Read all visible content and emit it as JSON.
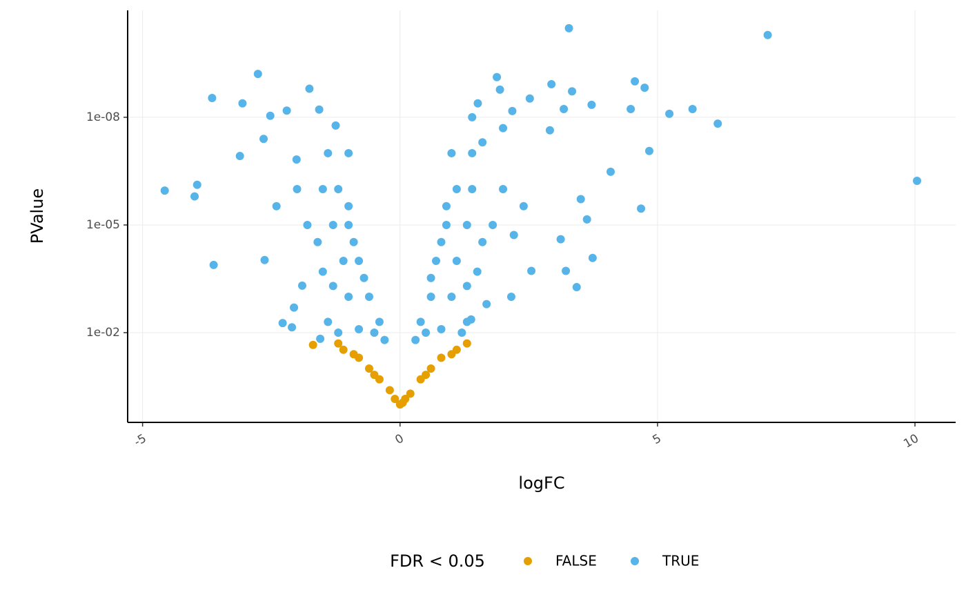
{
  "chart_data": {
    "type": "scatter",
    "x_label": "logFC",
    "y_label": "PValue",
    "legend_title": "FDR < 0.05",
    "legend_position": "bottom",
    "y_log": true,
    "grid": true,
    "xlim": [
      -5.29,
      10.79
    ],
    "ylim": [
      3.16,
      1.05e-11
    ],
    "xticks": [
      -5,
      0,
      5,
      10
    ],
    "yticks": [
      {
        "value": 0.01,
        "label": "1e-02"
      },
      {
        "value": 1e-05,
        "label": "1e-05"
      },
      {
        "value": 1e-08,
        "label": "1e-08"
      }
    ],
    "series": [
      {
        "name": "FALSE",
        "color": "#E69F00",
        "x": [
          -1.69,
          -1.2,
          -1.1,
          -0.9,
          -0.8,
          -0.6,
          -0.5,
          -0.4,
          -0.2,
          -0.1,
          0,
          0.05,
          0.1,
          0.2,
          0.4,
          0.5,
          0.6,
          0.8,
          1.0,
          1.1,
          1.3
        ],
        "values": [
          0.022,
          0.02,
          0.03,
          0.04,
          0.05,
          0.1,
          0.15,
          0.2,
          0.4,
          0.7,
          1,
          0.9,
          0.7,
          0.5,
          0.2,
          0.15,
          0.1,
          0.05,
          0.04,
          0.03,
          0.02
        ]
      },
      {
        "name": "TRUE",
        "color": "#56B4E9",
        "x": [
          3.28,
          7.14,
          -2.76,
          -3.65,
          -3.06,
          -1.76,
          -1.57,
          -4.57,
          -3.99,
          -3.94,
          -3.62,
          10.04,
          1.88,
          2.94,
          3.34,
          4.56,
          4.75,
          4.48,
          5.23,
          5.68,
          6.17,
          4.84,
          4.68,
          3.74,
          3.43,
          2.55,
          3.63,
          1.51,
          3.72,
          3.18,
          -2.28,
          -2.1,
          -2.06,
          -1.9,
          -1.55,
          -2.63,
          -3.11,
          -2.65,
          -2.52,
          -2.2,
          -2.01,
          -1.25,
          3.51,
          4.09,
          2.91,
          2.52,
          2.18,
          1.94,
          2.21,
          3.12,
          3.22,
          2.16,
          1.68,
          1.38,
          -0.3,
          -0.5,
          -0.8,
          -1.2,
          -1.4,
          -0.6,
          -1.0,
          -1.3,
          -0.8,
          -1.1,
          -1.5,
          -1.0,
          -1.3,
          -1.6,
          -1.2,
          -1.5,
          -1.0,
          -1.4,
          -1.0,
          -0.4,
          -0.7,
          -0.9,
          -1.8,
          -2.0,
          -2.4,
          0.3,
          0.5,
          0.8,
          1.2,
          1.3,
          0.6,
          1.0,
          1.3,
          0.7,
          1.1,
          1.5,
          0.9,
          1.3,
          1.6,
          1.1,
          1.4,
          0.9,
          1.4,
          1.0,
          0.4,
          0.6,
          0.8,
          1.8,
          2.0,
          2.4,
          1.4,
          2.0,
          1.6
        ],
        "values": [
          3.3e-11,
          5.1e-11,
          6.2e-10,
          2.9e-09,
          4.1e-09,
          1.6e-09,
          6.1e-09,
          1.1e-06,
          1.6e-06,
          7.6e-07,
          0.00013,
          5.9e-07,
          7.6e-10,
          1.2e-09,
          1.9e-09,
          1e-09,
          1.5e-09,
          5.9e-09,
          8e-09,
          5.9e-09,
          1.5e-08,
          8.7e-08,
          3.5e-06,
          8.3e-05,
          0.00054,
          0.00019,
          7e-06,
          4.1e-09,
          4.5e-09,
          5.9e-09,
          0.0054,
          0.0071,
          0.002,
          0.00049,
          0.0148,
          9.5e-05,
          1.2e-07,
          4e-08,
          9.1e-09,
          6.5e-09,
          1.5e-07,
          1.7e-08,
          1.9e-06,
          3.3e-07,
          2.3e-08,
          3e-09,
          6.7e-09,
          1.7e-09,
          1.9e-05,
          2.5e-05,
          0.00019,
          0.001,
          0.0016,
          0.0043,
          0.016,
          0.01,
          0.008,
          0.01,
          0.005,
          0.001,
          0.001,
          0.0005,
          0.0001,
          0.0001,
          0.0002,
          1e-05,
          1e-05,
          3e-05,
          1e-06,
          1e-06,
          3e-06,
          1e-07,
          1e-07,
          0.005,
          0.0003,
          3e-05,
          1e-05,
          1e-06,
          3e-06,
          0.016,
          0.01,
          0.008,
          0.01,
          0.005,
          0.001,
          0.001,
          0.0005,
          0.0001,
          0.0001,
          0.0002,
          1e-05,
          1e-05,
          3e-05,
          1e-06,
          1e-06,
          3e-06,
          1e-07,
          1e-07,
          0.005,
          0.0003,
          3e-05,
          1e-05,
          1e-06,
          3e-06,
          1e-08,
          2e-08,
          5e-08
        ]
      }
    ]
  }
}
